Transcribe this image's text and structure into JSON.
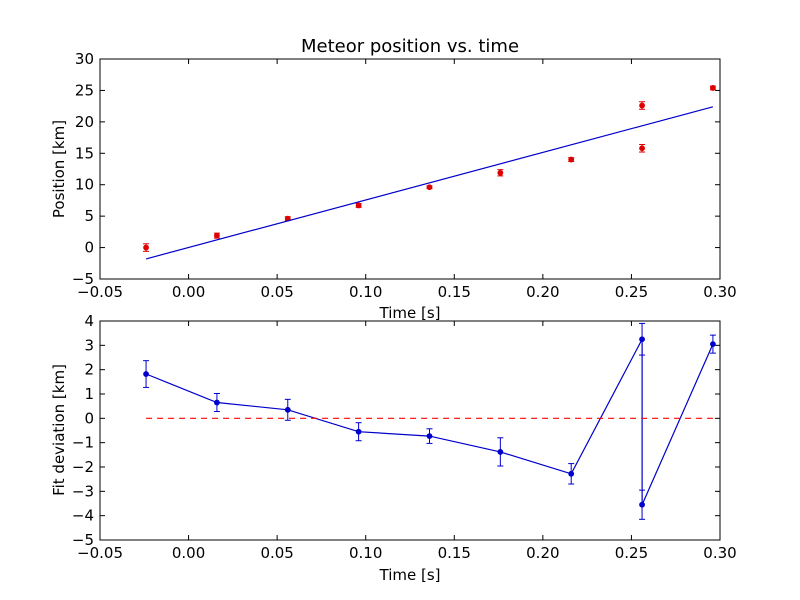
{
  "chart_data": [
    {
      "type": "scatter",
      "title": "Meteor position vs. time",
      "xlabel": "Time [s]",
      "ylabel": "Position [km]",
      "xlim": [
        -0.05,
        0.3
      ],
      "ylim": [
        -5,
        30
      ],
      "xticks": [
        -0.05,
        0.0,
        0.05,
        0.1,
        0.15,
        0.2,
        0.25,
        0.3
      ],
      "xtick_labels": [
        "−0.05",
        "0.00",
        "0.05",
        "0.10",
        "0.15",
        "0.20",
        "0.25",
        "0.30"
      ],
      "yticks": [
        -5,
        0,
        5,
        10,
        15,
        20,
        25,
        30
      ],
      "ytick_labels": [
        "−5",
        "0",
        "5",
        "10",
        "15",
        "20",
        "25",
        "30"
      ],
      "grid": false,
      "series": [
        {
          "kind": "errorbar-points",
          "color": "#dd0000",
          "x": [
            -0.024,
            0.016,
            0.056,
            0.096,
            0.136,
            0.176,
            0.216,
            0.256,
            0.256,
            0.296
          ],
          "y": [
            0.0,
            1.9,
            4.6,
            6.7,
            9.6,
            11.9,
            14.0,
            22.6,
            15.8,
            25.4
          ],
          "yerr": [
            0.6,
            0.4,
            0.3,
            0.3,
            0.2,
            0.5,
            0.3,
            0.6,
            0.6,
            0.3
          ]
        },
        {
          "kind": "line",
          "color": "#0000cc",
          "x": [
            -0.024,
            0.296
          ],
          "y": [
            -1.8,
            22.4
          ]
        }
      ]
    },
    {
      "type": "line",
      "title": "",
      "xlabel": "Time [s]",
      "ylabel": "Fit deviation [km]",
      "xlim": [
        -0.05,
        0.3
      ],
      "ylim": [
        -5,
        4
      ],
      "xticks": [
        -0.05,
        0.0,
        0.05,
        0.1,
        0.15,
        0.2,
        0.25,
        0.3
      ],
      "xtick_labels": [
        "−0.05",
        "0.00",
        "0.05",
        "0.10",
        "0.15",
        "0.20",
        "0.25",
        "0.30"
      ],
      "yticks": [
        -5,
        -4,
        -3,
        -2,
        -1,
        0,
        1,
        2,
        3,
        4
      ],
      "ytick_labels": [
        "−5",
        "−4",
        "−3",
        "−2",
        "−1",
        "0",
        "1",
        "2",
        "3",
        "4"
      ],
      "grid": false,
      "series": [
        {
          "kind": "errorbar-line",
          "color": "#0000cc",
          "x": [
            -0.024,
            0.016,
            0.056,
            0.096,
            0.136,
            0.176,
            0.216,
            0.256,
            0.256,
            0.296
          ],
          "y": [
            1.82,
            0.65,
            0.35,
            -0.55,
            -0.73,
            -1.38,
            -2.28,
            3.25,
            -3.55,
            3.05
          ],
          "yerr": [
            0.55,
            0.37,
            0.43,
            0.37,
            0.3,
            0.58,
            0.42,
            0.65,
            0.6,
            0.37
          ]
        },
        {
          "kind": "dashed-line",
          "color": "#ff0000",
          "x": [
            -0.024,
            0.296
          ],
          "y": [
            0,
            0
          ]
        }
      ]
    }
  ]
}
